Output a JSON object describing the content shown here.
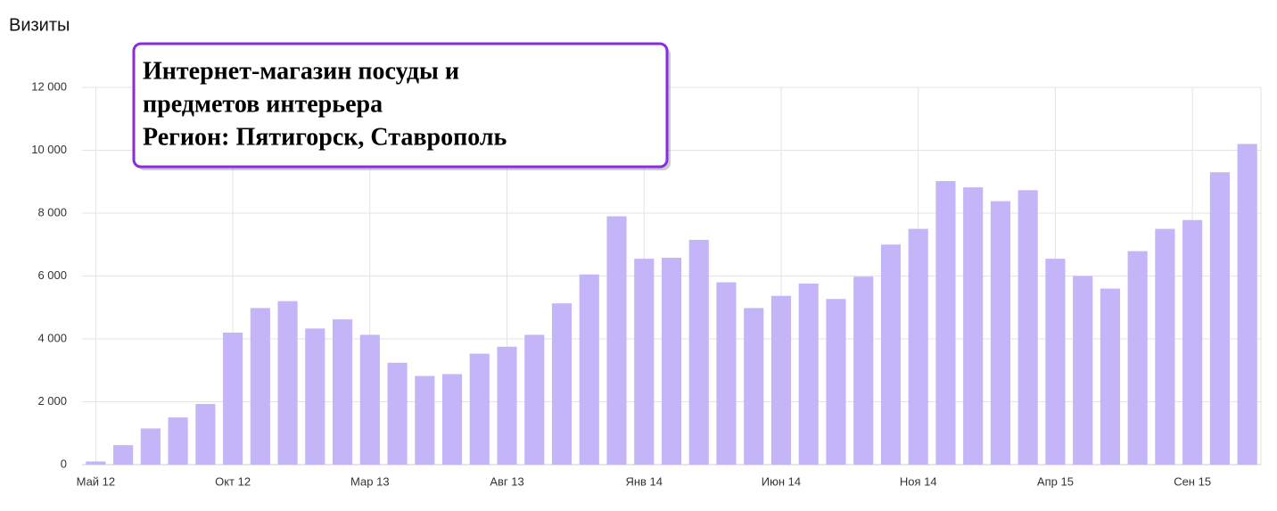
{
  "chart_data": {
    "type": "bar",
    "title": "Визиты",
    "annotation": [
      "Интернет-магазин  посуды и",
      "предметов интерьера",
      "Регион: Пятигорск, Ставрополь"
    ],
    "categories": [
      "Май 12",
      null,
      null,
      null,
      null,
      "Окт 12",
      null,
      null,
      null,
      null,
      "Мар 13",
      null,
      null,
      null,
      null,
      "Авг 13",
      null,
      null,
      null,
      null,
      "Янв 14",
      null,
      null,
      null,
      null,
      "Июн 14",
      null,
      null,
      null,
      null,
      "Ноя 14",
      null,
      null,
      null,
      null,
      "Апр 15",
      null,
      null,
      null,
      null,
      "Сен 15",
      null,
      null
    ],
    "values": [
      100,
      620,
      1150,
      1500,
      1930,
      4200,
      4980,
      5200,
      4330,
      4620,
      4130,
      3240,
      2820,
      2880,
      3530,
      3750,
      4130,
      5130,
      6050,
      7900,
      6550,
      6580,
      7150,
      5800,
      4980,
      5370,
      5760,
      5270,
      5980,
      7000,
      7500,
      9020,
      8820,
      8380,
      8730,
      6550,
      6000,
      5600,
      6790,
      7500,
      7780,
      9300,
      10200
    ],
    "color": "#c4b5f8",
    "ylim": [
      0,
      12000
    ],
    "yticks": [
      0,
      {
        "value": 2000,
        "label": "2 000"
      },
      {
        "value": 4000,
        "label": "4 000"
      },
      {
        "value": 6000,
        "label": "6 000"
      },
      {
        "value": 8000,
        "label": "8 000"
      },
      {
        "value": 10000,
        "label": "10 000"
      },
      {
        "value": 12000,
        "label": "12 000"
      }
    ],
    "grid": true
  }
}
